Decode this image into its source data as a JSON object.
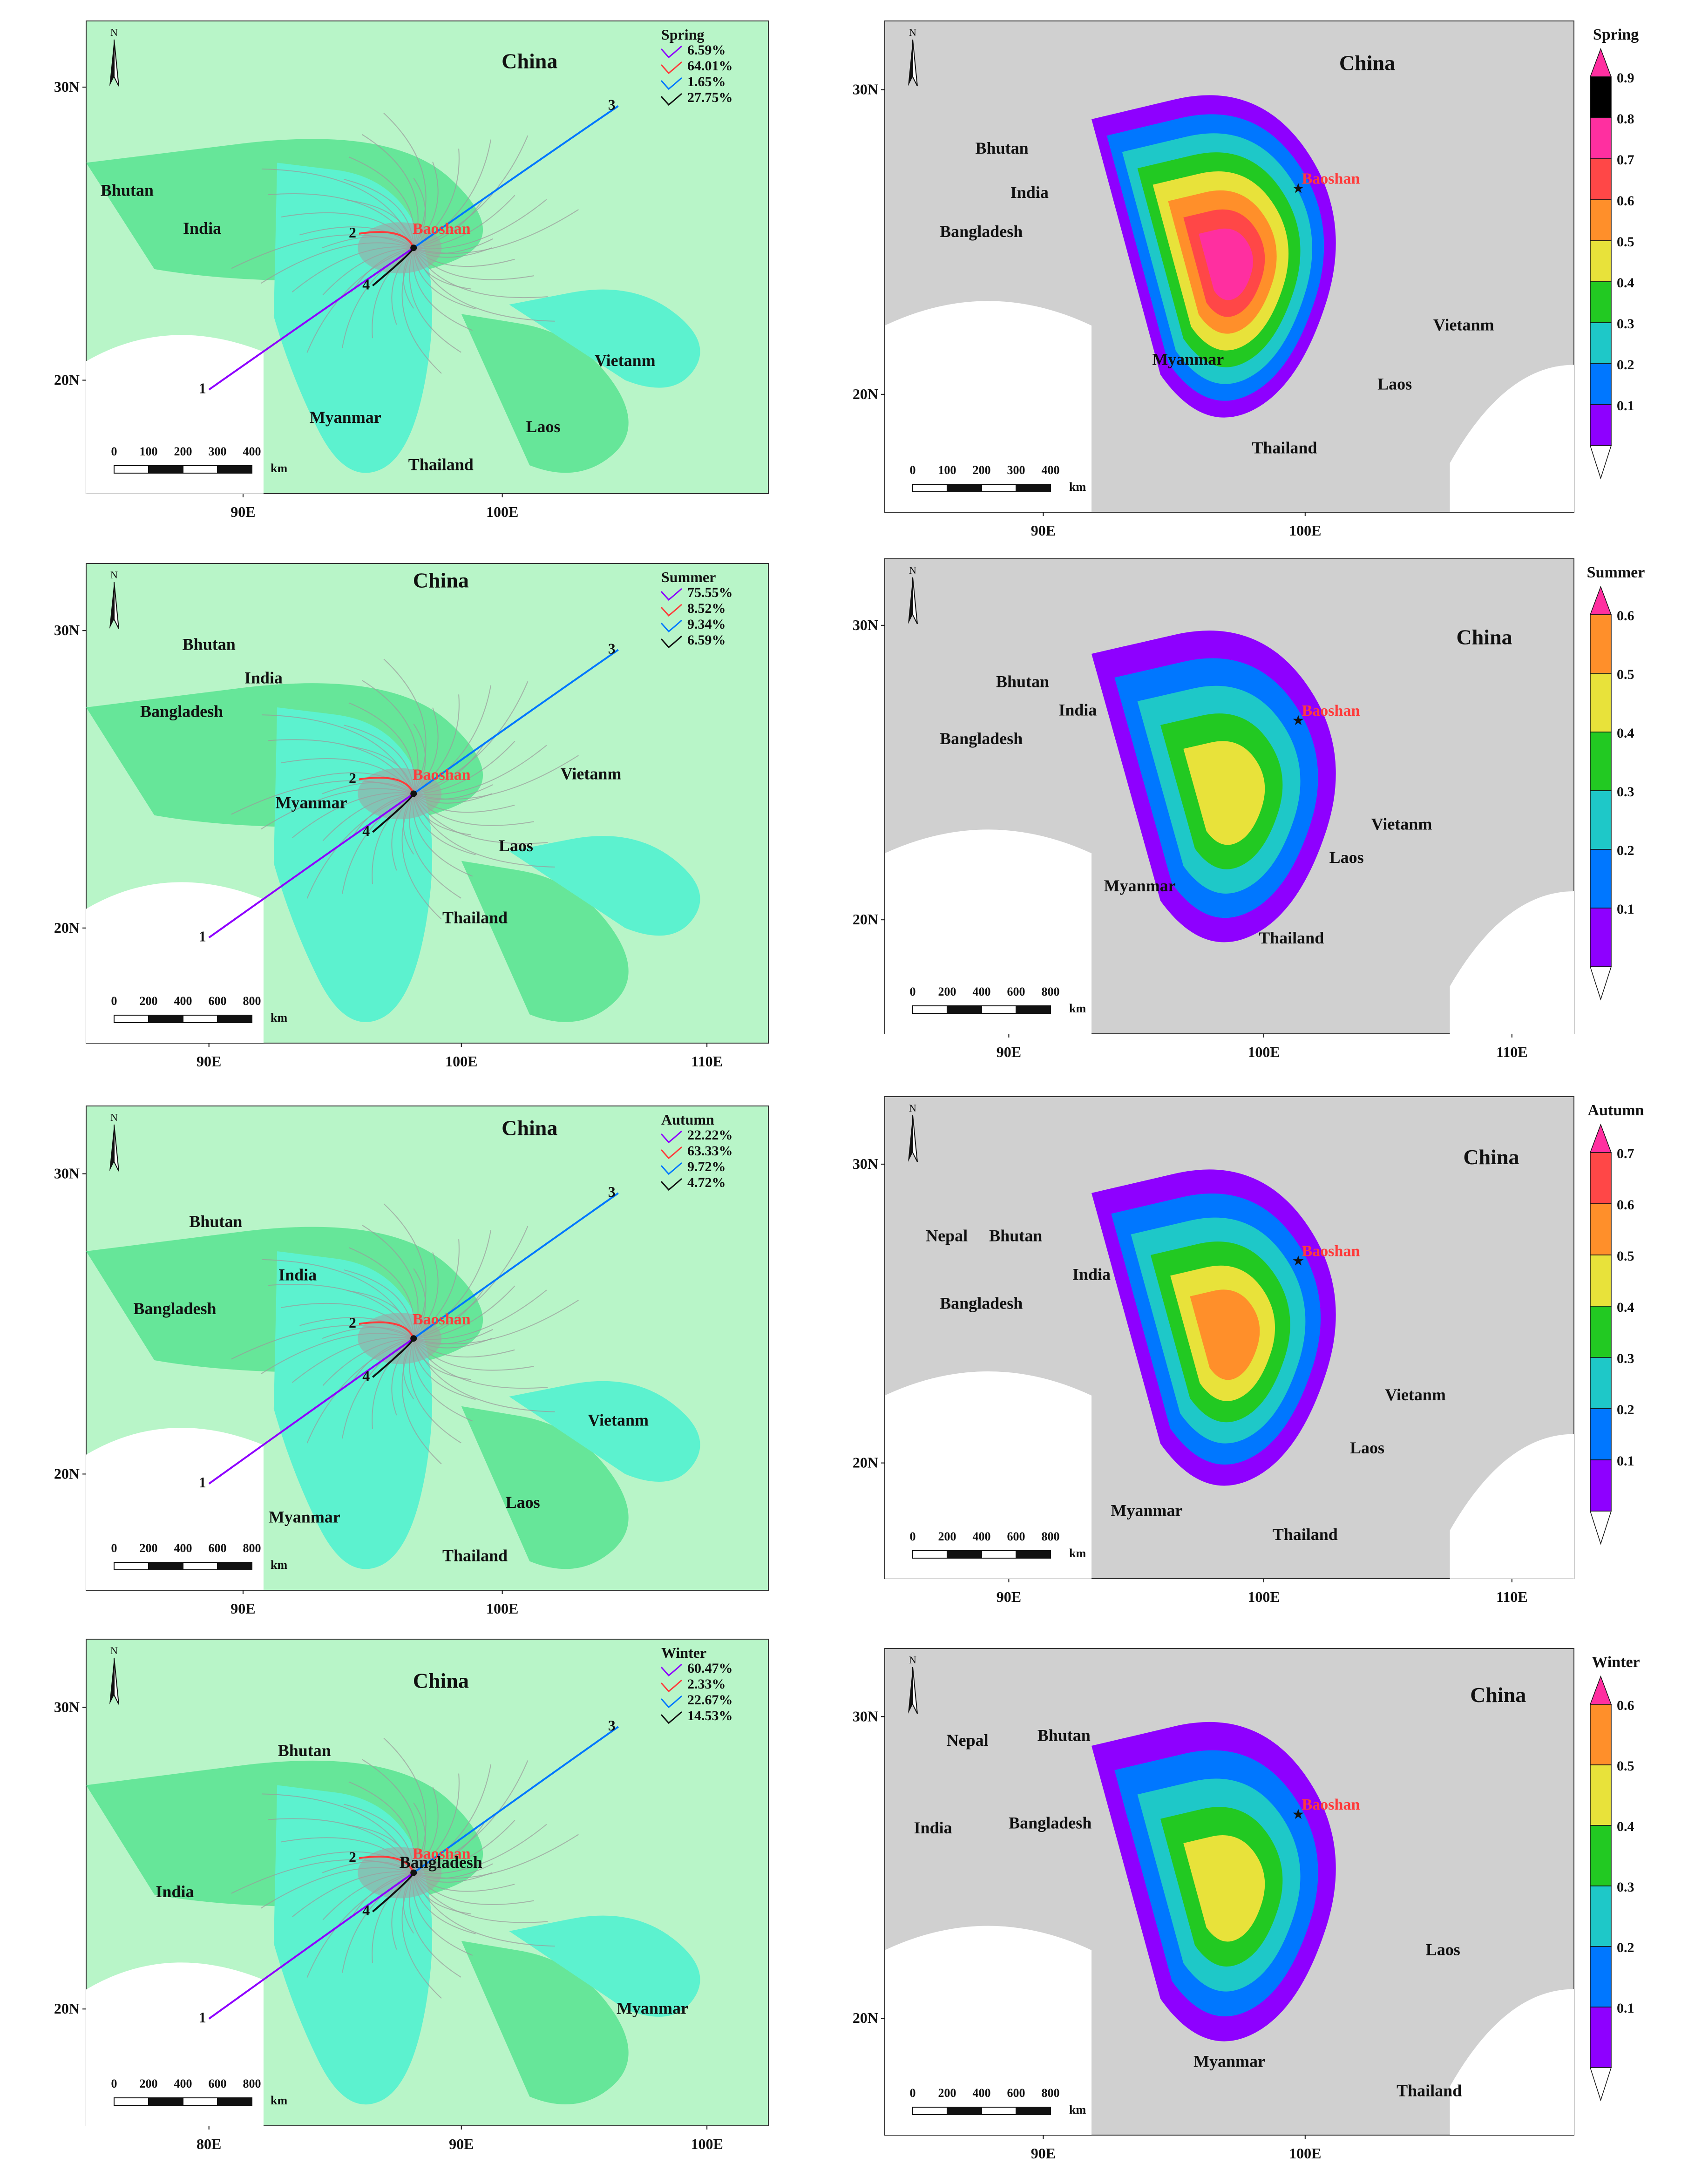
{
  "colors": {
    "land_gray": "#d0d0d0",
    "ocean": "#ffffff",
    "china_green": "#b8f5c8",
    "mid_green": "#66e699",
    "cyan_green": "#5cf2cf",
    "track_gray": "#9a9a9a",
    "baoshan_red": "#ff3b3b",
    "c_purple": "#8e00ff",
    "c_blue": "#0077ff",
    "c_cyan": "#1ec8c8",
    "c_green": "#22c922",
    "c_yellow": "#e8e23a",
    "c_orange": "#ff8f2a",
    "c_red": "#ff4747",
    "c_magenta": "#ff2fa0"
  },
  "panels": [
    {
      "id": "spring-tracks",
      "kind": "tracks",
      "season": "Spring",
      "axis_x": [
        "90E",
        "100E"
      ],
      "axis_y": [
        "30N",
        "20N"
      ],
      "place_labels": [
        "China",
        "Bhutan",
        "India",
        "Myanmar",
        "Vietanm",
        "Laos",
        "Thailand"
      ],
      "city": "Baoshan",
      "legend": [
        "6.59%",
        "64.01%",
        "1.65%",
        "27.75%"
      ],
      "track_ids": [
        "1",
        "2",
        "3",
        "4"
      ],
      "scale": [
        "0",
        "100",
        "200",
        "300",
        "400",
        "km"
      ]
    },
    {
      "id": "spring-density",
      "kind": "density",
      "season": "Spring",
      "axis_x": [
        "90E",
        "100E"
      ],
      "axis_y": [
        "30N",
        "20N"
      ],
      "place_labels": [
        "China",
        "Bhutan",
        "India",
        "Bangladesh",
        "Myanmar",
        "Vietanm",
        "Laos",
        "Thailand"
      ],
      "city": "Baoshan",
      "colorbar": [
        "0.9",
        "0.8",
        "0.7",
        "0.6",
        "0.5",
        "0.4",
        "0.3",
        "0.2",
        "0.1"
      ],
      "scale": [
        "0",
        "100",
        "200",
        "300",
        "400",
        "km"
      ]
    },
    {
      "id": "summer-tracks",
      "kind": "tracks",
      "season": "Summer",
      "axis_x": [
        "90E",
        "100E",
        "110E"
      ],
      "axis_y": [
        "30N",
        "20N"
      ],
      "place_labels": [
        "China",
        "Bhutan",
        "India",
        "Bangladesh",
        "Myanmar",
        "Vietanm",
        "Laos",
        "Thailand"
      ],
      "city": "Baoshan",
      "legend": [
        "75.55%",
        "8.52%",
        "9.34%",
        "6.59%"
      ],
      "track_ids": [
        "1",
        "2",
        "3",
        "4"
      ],
      "scale": [
        "0",
        "200",
        "400",
        "600",
        "800",
        "km"
      ]
    },
    {
      "id": "summer-density",
      "kind": "density",
      "season": "Summer",
      "axis_x": [
        "90E",
        "100E",
        "110E"
      ],
      "axis_y": [
        "30N",
        "20N"
      ],
      "place_labels": [
        "China",
        "Bhutan",
        "India",
        "Bangladesh",
        "Myanmar",
        "Vietanm",
        "Laos",
        "Thailand"
      ],
      "city": "Baoshan",
      "colorbar": [
        "0.6",
        "0.5",
        "0.4",
        "0.3",
        "0.2",
        "0.1"
      ],
      "scale": [
        "0",
        "200",
        "400",
        "600",
        "800",
        "km"
      ]
    },
    {
      "id": "autumn-tracks",
      "kind": "tracks",
      "season": "Autumn",
      "axis_x": [
        "90E",
        "100E"
      ],
      "axis_y": [
        "30N",
        "20N"
      ],
      "place_labels": [
        "China",
        "Bhutan",
        "India",
        "Bangladesh",
        "Myanmar",
        "Vietanm",
        "Laos",
        "Thailand"
      ],
      "city": "Baoshan",
      "legend": [
        "22.22%",
        "63.33%",
        "9.72%",
        "4.72%"
      ],
      "track_ids": [
        "1",
        "2",
        "3",
        "4"
      ],
      "scale": [
        "0",
        "200",
        "400",
        "600",
        "800",
        "km"
      ]
    },
    {
      "id": "autumn-density",
      "kind": "density",
      "season": "Autumn",
      "axis_x": [
        "90E",
        "100E",
        "110E"
      ],
      "axis_y": [
        "30N",
        "20N"
      ],
      "place_labels": [
        "China",
        "Nepal",
        "Bhutan",
        "India",
        "Bangladesh",
        "Myanmar",
        "Vietanm",
        "Laos",
        "Thailand"
      ],
      "city": "Baoshan",
      "colorbar": [
        "0.7",
        "0.6",
        "0.5",
        "0.4",
        "0.3",
        "0.2",
        "0.1"
      ],
      "scale": [
        "0",
        "200",
        "400",
        "600",
        "800",
        "km"
      ]
    },
    {
      "id": "winter-tracks",
      "kind": "tracks",
      "season": "Winter",
      "axis_x": [
        "80E",
        "90E",
        "100E"
      ],
      "axis_y": [
        "30N",
        "20N"
      ],
      "place_labels": [
        "China",
        "Bhutan",
        "India",
        "Bangladesh",
        "Myanmar"
      ],
      "city": "Baoshan",
      "legend": [
        "60.47%",
        "2.33%",
        "22.67%",
        "14.53%"
      ],
      "track_ids": [
        "1",
        "2",
        "3",
        "4"
      ],
      "scale": [
        "0",
        "200",
        "400",
        "600",
        "800",
        "km"
      ]
    },
    {
      "id": "winter-density",
      "kind": "density",
      "season": "Winter",
      "axis_x": [
        "90E",
        "100E"
      ],
      "axis_y": [
        "30N",
        "20N"
      ],
      "place_labels": [
        "China",
        "Nepal",
        "Bhutan",
        "India",
        "Bangladesh",
        "Myanmar",
        "Laos",
        "Thailand"
      ],
      "city": "Baoshan",
      "colorbar": [
        "0.6",
        "0.5",
        "0.4",
        "0.3",
        "0.2",
        "0.1"
      ],
      "scale": [
        "0",
        "200",
        "400",
        "600",
        "800",
        "km"
      ]
    }
  ]
}
